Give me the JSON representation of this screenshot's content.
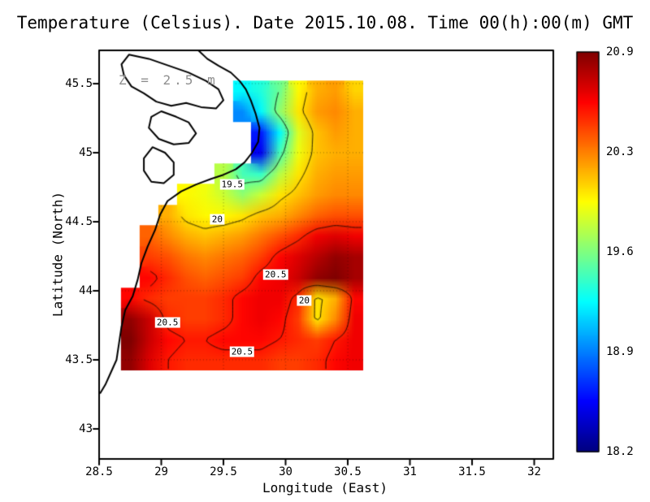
{
  "title": "Temperature (Celsius). Date 2015.10.08. Time 00(h):00(m) GMT",
  "annotation": "Z = 2.5 m",
  "axes": {
    "xlabel": "Longitude (East)",
    "ylabel": "Latitude (North)",
    "x_ticks": [
      {
        "value": 28.5,
        "label": "28.5"
      },
      {
        "value": 29,
        "label": "29"
      },
      {
        "value": 29.5,
        "label": "29.5"
      },
      {
        "value": 30,
        "label": "30"
      },
      {
        "value": 30.5,
        "label": "30.5"
      },
      {
        "value": 31,
        "label": "31"
      },
      {
        "value": 31.5,
        "label": "31.5"
      },
      {
        "value": 32,
        "label": "32"
      }
    ],
    "y_ticks": [
      {
        "value": 45.5,
        "label": "45.5"
      },
      {
        "value": 45,
        "label": "45"
      },
      {
        "value": 44.5,
        "label": "44.5"
      },
      {
        "value": 44,
        "label": "44"
      },
      {
        "value": 43.5,
        "label": "43.5"
      },
      {
        "value": 43,
        "label": "43"
      }
    ]
  },
  "colorbar": {
    "min": 18.2,
    "max": 20.9,
    "tick_labels": [
      "20.9",
      "20.3",
      "19.6",
      "18.9",
      "18.2"
    ]
  },
  "chart_data": {
    "type": "heatmap",
    "title": "Temperature (Celsius)",
    "date": "2015.10.08",
    "time": "00(h):00(m) GMT",
    "depth_label": "Z = 2.5 m",
    "xlabel": "Longitude (East)",
    "ylabel": "Latitude (North)",
    "xlim": [
      28.5,
      32.15
    ],
    "ylim": [
      42.78,
      45.74
    ],
    "value_range": [
      18.2,
      20.9
    ],
    "colormap": "jet",
    "colormap_stops": [
      {
        "pos": 0,
        "color": "#000080"
      },
      {
        "pos": 0.125,
        "color": "#0000ff"
      },
      {
        "pos": 0.375,
        "color": "#00ffff"
      },
      {
        "pos": 0.625,
        "color": "#ffff00"
      },
      {
        "pos": 0.875,
        "color": "#ff0000"
      },
      {
        "pos": 1,
        "color": "#800000"
      }
    ],
    "contour_levels": [
      19.5,
      20,
      20.5
    ],
    "grid": {
      "lons": [
        28.6,
        28.75,
        28.9,
        29.05,
        29.2,
        29.35,
        29.5,
        29.65,
        29.8,
        29.95,
        30.1,
        30.25,
        30.4,
        30.55
      ],
      "lats": [
        45.6,
        45.45,
        45.3,
        45.15,
        45.0,
        44.85,
        44.7,
        44.55,
        44.4,
        44.25,
        44.1,
        43.95,
        43.8,
        43.65,
        43.5
      ],
      "values": [
        [
          null,
          null,
          null,
          null,
          null,
          null,
          null,
          null,
          null,
          null,
          null,
          null,
          null,
          null
        ],
        [
          null,
          null,
          null,
          null,
          null,
          null,
          null,
          19.2,
          19.3,
          19.5,
          19.9,
          20.1,
          20.15,
          20.0
        ],
        [
          null,
          null,
          null,
          null,
          null,
          null,
          null,
          18.9,
          19.2,
          19.6,
          19.95,
          20.15,
          20.2,
          20.1
        ],
        [
          null,
          null,
          null,
          null,
          null,
          null,
          null,
          null,
          18.6,
          19.2,
          19.8,
          20.05,
          20.15,
          20.1
        ],
        [
          null,
          null,
          null,
          null,
          null,
          null,
          null,
          null,
          18.5,
          19.4,
          19.85,
          20.05,
          20.1,
          20.1
        ],
        [
          null,
          null,
          null,
          null,
          null,
          null,
          19.7,
          19.4,
          19.35,
          19.7,
          19.95,
          20.1,
          20.15,
          20.15
        ],
        [
          null,
          null,
          null,
          null,
          19.9,
          19.85,
          19.75,
          19.6,
          19.75,
          19.95,
          20.05,
          20.15,
          20.2,
          20.2
        ],
        [
          null,
          null,
          null,
          20.1,
          19.95,
          19.9,
          19.9,
          19.95,
          20.05,
          20.1,
          20.2,
          20.3,
          20.35,
          20.35
        ],
        [
          null,
          null,
          20.3,
          20.2,
          20.1,
          20.05,
          20.1,
          20.15,
          20.25,
          20.35,
          20.45,
          20.6,
          20.65,
          20.6
        ],
        [
          null,
          null,
          20.4,
          20.35,
          20.25,
          20.2,
          20.25,
          20.3,
          20.4,
          20.55,
          20.65,
          20.75,
          20.85,
          20.8
        ],
        [
          null,
          null,
          20.55,
          20.45,
          20.35,
          20.3,
          20.35,
          20.4,
          20.55,
          20.6,
          20.7,
          20.85,
          20.9,
          20.8
        ],
        [
          null,
          20.55,
          20.45,
          20.4,
          20.4,
          20.4,
          20.45,
          20.55,
          20.6,
          20.6,
          20.45,
          19.95,
          20.1,
          20.55
        ],
        [
          null,
          20.85,
          20.7,
          20.45,
          20.4,
          20.4,
          20.45,
          20.55,
          20.6,
          20.55,
          20.4,
          19.95,
          20.2,
          20.6
        ],
        [
          null,
          20.9,
          20.7,
          20.55,
          20.5,
          20.5,
          20.55,
          20.55,
          20.55,
          20.5,
          20.45,
          20.4,
          20.5,
          20.6
        ],
        [
          null,
          20.85,
          20.65,
          20.5,
          20.45,
          20.45,
          20.45,
          20.45,
          20.45,
          20.4,
          20.4,
          20.45,
          20.55,
          20.6
        ]
      ]
    },
    "contour_labels": [
      {
        "text": "19.5",
        "lon": 29.57,
        "lat": 44.77
      },
      {
        "text": "20",
        "lon": 29.45,
        "lat": 44.52
      },
      {
        "text": "20.5",
        "lon": 29.92,
        "lat": 44.12
      },
      {
        "text": "20",
        "lon": 30.15,
        "lat": 43.93
      },
      {
        "text": "20.5",
        "lon": 29.05,
        "lat": 43.77
      },
      {
        "text": "20.5",
        "lon": 29.65,
        "lat": 43.56
      }
    ],
    "coastline": [
      {
        "closed": false,
        "points": [
          [
            29.3,
            45.74
          ],
          [
            29.37,
            45.68
          ],
          [
            29.46,
            45.63
          ],
          [
            29.56,
            45.58
          ],
          [
            29.63,
            45.52
          ],
          [
            29.68,
            45.46
          ],
          [
            29.72,
            45.38
          ],
          [
            29.76,
            45.28
          ],
          [
            29.79,
            45.18
          ],
          [
            29.78,
            45.08
          ],
          [
            29.73,
            45.0
          ],
          [
            29.67,
            44.93
          ],
          [
            29.6,
            44.88
          ],
          [
            29.5,
            44.84
          ],
          [
            29.4,
            44.81
          ],
          [
            29.28,
            44.77
          ],
          [
            29.16,
            44.72
          ],
          [
            29.05,
            44.65
          ],
          [
            28.99,
            44.55
          ],
          [
            28.95,
            44.44
          ],
          [
            28.89,
            44.32
          ],
          [
            28.84,
            44.2
          ],
          [
            28.81,
            44.08
          ],
          [
            28.77,
            43.96
          ],
          [
            28.71,
            43.86
          ],
          [
            28.68,
            43.74
          ],
          [
            28.66,
            43.62
          ],
          [
            28.64,
            43.5
          ],
          [
            28.59,
            43.4
          ],
          [
            28.55,
            43.32
          ],
          [
            28.51,
            43.26
          ]
        ]
      },
      {
        "closed": true,
        "points": [
          [
            28.74,
            45.71
          ],
          [
            28.9,
            45.68
          ],
          [
            29.06,
            45.63
          ],
          [
            29.22,
            45.58
          ],
          [
            29.36,
            45.52
          ],
          [
            29.46,
            45.46
          ],
          [
            29.5,
            45.38
          ],
          [
            29.44,
            45.32
          ],
          [
            29.32,
            45.33
          ],
          [
            29.2,
            45.36
          ],
          [
            29.08,
            45.34
          ],
          [
            28.96,
            45.37
          ],
          [
            28.86,
            45.43
          ],
          [
            28.76,
            45.48
          ],
          [
            28.7,
            45.56
          ],
          [
            28.68,
            45.64
          ]
        ]
      },
      {
        "closed": true,
        "points": [
          [
            29.0,
            45.3
          ],
          [
            29.12,
            45.26
          ],
          [
            29.22,
            45.22
          ],
          [
            29.28,
            45.14
          ],
          [
            29.22,
            45.07
          ],
          [
            29.1,
            45.06
          ],
          [
            28.98,
            45.1
          ],
          [
            28.9,
            45.18
          ],
          [
            28.92,
            45.26
          ]
        ]
      },
      {
        "closed": true,
        "points": [
          [
            28.93,
            45.04
          ],
          [
            29.03,
            45.0
          ],
          [
            29.1,
            44.93
          ],
          [
            29.1,
            44.84
          ],
          [
            29.02,
            44.78
          ],
          [
            28.92,
            44.79
          ],
          [
            28.86,
            44.87
          ],
          [
            28.86,
            44.96
          ]
        ]
      }
    ]
  }
}
